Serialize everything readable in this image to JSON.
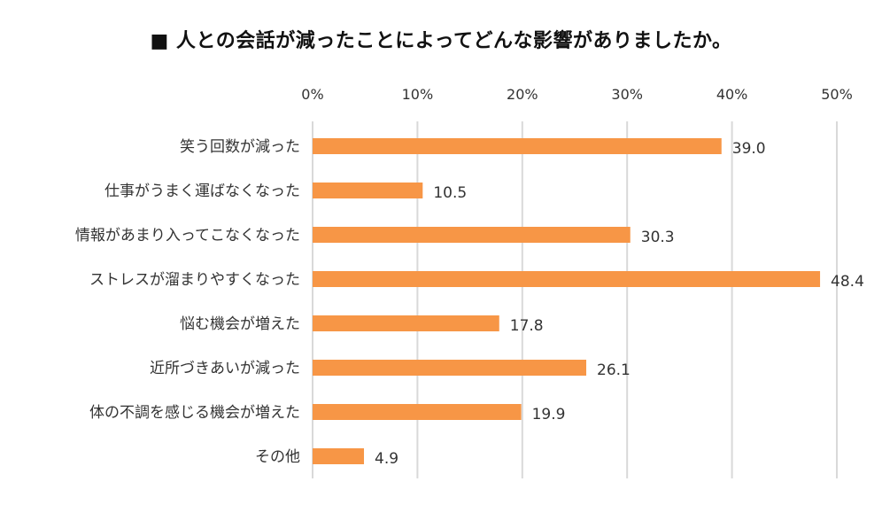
{
  "chart_data": {
    "type": "bar",
    "orientation": "horizontal",
    "title": "■ 人との会話が減ったことによってどんな影響がありましたか。",
    "categories": [
      "笑う回数が減った",
      "仕事がうまく運ばなくなった",
      "情報があまり入ってこなくなった",
      "ストレスが溜まりやすくなった",
      "悩む機会が増えた",
      "近所づきあいが減った",
      "体の不調を感じる機会が増えた",
      "その他"
    ],
    "values": [
      39.0,
      10.5,
      30.3,
      48.4,
      17.8,
      26.1,
      19.9,
      4.9
    ],
    "value_labels": [
      "39.0",
      "10.5",
      "30.3",
      "48.4",
      "17.8",
      "26.1",
      "19.9",
      "4.9"
    ],
    "xlim": [
      0,
      50
    ],
    "x_ticks": [
      "0%",
      "10%",
      "20%",
      "30%",
      "40%",
      "50%"
    ],
    "x_tick_values": [
      0,
      10,
      20,
      30,
      40,
      50
    ],
    "x_axis_position": "top",
    "grid": true,
    "bar_color": "#F79646",
    "grid_color": "#D9D9D9"
  }
}
